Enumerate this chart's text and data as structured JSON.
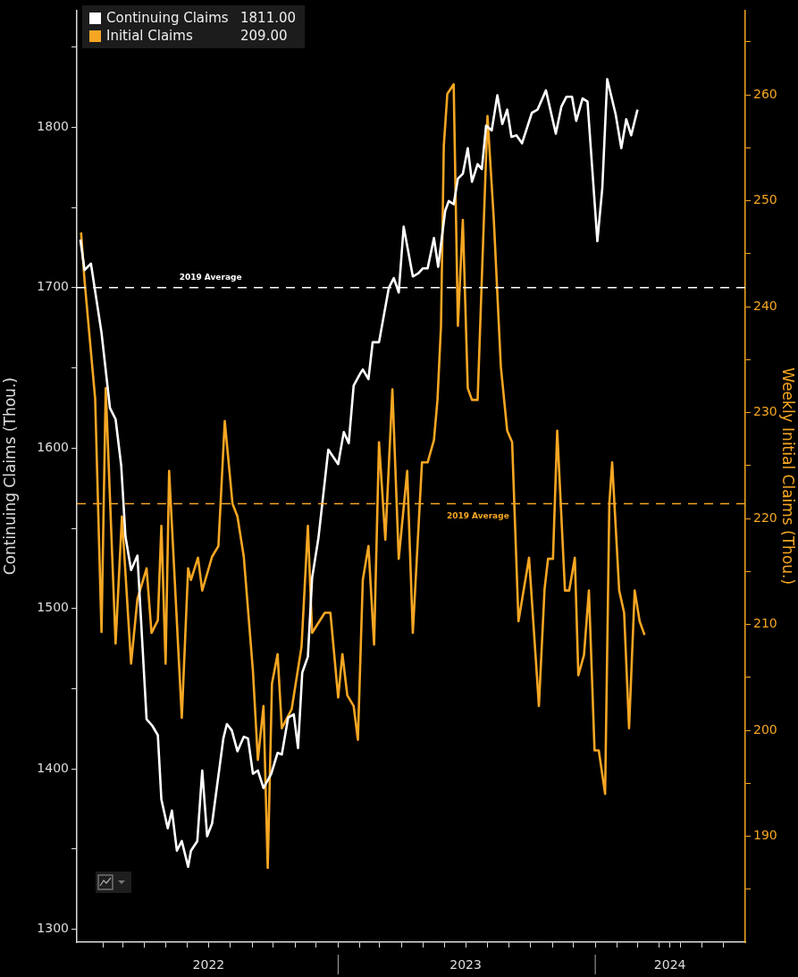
{
  "chart_data": {
    "type": "line",
    "ylabel": "Continuing Claims (Thou.)",
    "y2label": "Weekly Initial Claims (Thou.)",
    "xlim": [
      "2021-12-26",
      "2024-08-01"
    ],
    "xticks": [
      {
        "value": "2022-02-01",
        "label": null
      },
      {
        "value": "2022-03-01",
        "label": null
      },
      {
        "value": "2022-04-01",
        "label": null
      },
      {
        "value": "2022-05-01",
        "label": null
      },
      {
        "value": "2022-06-01",
        "label": null
      },
      {
        "value": "2022-07-01",
        "label": "2022"
      },
      {
        "value": "2022-08-01",
        "label": null
      },
      {
        "value": "2022-09-01",
        "label": null
      },
      {
        "value": "2022-10-01",
        "label": null
      },
      {
        "value": "2022-11-01",
        "label": null
      },
      {
        "value": "2022-12-01",
        "label": null
      },
      {
        "value": "2023-01-01",
        "label": null
      },
      {
        "value": "2023-02-01",
        "label": null
      },
      {
        "value": "2023-03-01",
        "label": null
      },
      {
        "value": "2023-04-01",
        "label": null
      },
      {
        "value": "2023-05-01",
        "label": null
      },
      {
        "value": "2023-06-01",
        "label": null
      },
      {
        "value": "2023-07-01",
        "label": "2023"
      },
      {
        "value": "2023-08-01",
        "label": null
      },
      {
        "value": "2023-09-01",
        "label": null
      },
      {
        "value": "2023-10-01",
        "label": null
      },
      {
        "value": "2023-11-01",
        "label": null
      },
      {
        "value": "2023-12-01",
        "label": null
      },
      {
        "value": "2024-01-01",
        "label": null
      },
      {
        "value": "2024-02-01",
        "label": null
      },
      {
        "value": "2024-03-01",
        "label": null
      },
      {
        "value": "2024-04-01",
        "label": null
      },
      {
        "value": "2024-04-16",
        "label": "2024"
      },
      {
        "value": "2024-05-01",
        "label": null
      },
      {
        "value": "2024-06-01",
        "label": null
      },
      {
        "value": "2024-07-01",
        "label": null
      }
    ],
    "ylim": [
      1292,
      1873
    ],
    "yticks": [
      1300,
      {
        "value": 1350,
        "label": null
      },
      1400,
      {
        "value": 1450,
        "label": null
      },
      1500,
      {
        "value": 1550,
        "label": null
      },
      1600,
      {
        "value": 1650,
        "label": null
      },
      1700,
      {
        "value": 1750,
        "label": null
      },
      1800,
      {
        "value": 1850,
        "label": null
      }
    ],
    "y2lim": [
      180,
      268
    ],
    "y2ticks": [
      {
        "value": 185,
        "label": null
      },
      190,
      {
        "value": 195,
        "label": null
      },
      200,
      {
        "value": 205,
        "label": null
      },
      210,
      {
        "value": 215,
        "label": null
      },
      220,
      {
        "value": 225,
        "label": null
      },
      230,
      {
        "value": 235,
        "label": null
      },
      240,
      {
        "value": 245,
        "label": null
      },
      250,
      {
        "value": 255,
        "label": null
      },
      260,
      {
        "value": 265,
        "label": null
      }
    ],
    "annotations": [
      "1811.00",
      "209.00"
    ],
    "grid": false,
    "legend": "top left",
    "marker": "none",
    "line_style": "solid",
    "ref_lines": [
      {
        "axis": "y",
        "value": 1700,
        "label": "2019 Average",
        "color": "#ffffff",
        "line_style": "dashed"
      },
      {
        "axis": "y2",
        "value": 221.4,
        "label": "2019 Average",
        "color": "#f5a623",
        "line_style": "dashed"
      }
    ],
    "series": [
      {
        "name": "Continuing Claims",
        "color": "#ffffff",
        "x": [
          "2021-12-31",
          "2022-01-06",
          "2022-01-15",
          "2022-01-30",
          "2022-02-11",
          "2022-02-19",
          "2022-02-27",
          "2022-03-05",
          "2022-03-13",
          "2022-03-22",
          "2022-04-04",
          "2022-04-12",
          "2022-04-20",
          "2022-04-25",
          "2022-05-04",
          "2022-05-10",
          "2022-05-17",
          "2022-05-24",
          "2022-06-02",
          "2022-06-06",
          "2022-06-15",
          "2022-06-22",
          "2022-06-29",
          "2022-07-06",
          "2022-07-22",
          "2022-07-27",
          "2022-08-03",
          "2022-08-11",
          "2022-08-20",
          "2022-08-26",
          "2022-09-02",
          "2022-09-09",
          "2022-09-17",
          "2022-09-28",
          "2022-10-07",
          "2022-10-13",
          "2022-10-22",
          "2022-10-30",
          "2022-11-05",
          "2022-11-11",
          "2022-11-19",
          "2022-11-25",
          "2022-12-04",
          "2022-12-18",
          "2023-01-01",
          "2023-01-09",
          "2023-01-16",
          "2023-01-23",
          "2023-02-02",
          "2023-02-05",
          "2023-02-13",
          "2023-02-19",
          "2023-02-28",
          "2023-03-14",
          "2023-03-21",
          "2023-03-28",
          "2023-04-04",
          "2023-04-17",
          "2023-04-25",
          "2023-05-01",
          "2023-05-08",
          "2023-05-17",
          "2023-05-23",
          "2023-06-02",
          "2023-06-07",
          "2023-06-14",
          "2023-06-20",
          "2023-06-27",
          "2023-07-04",
          "2023-07-10",
          "2023-07-18",
          "2023-07-24",
          "2023-07-30",
          "2023-08-07",
          "2023-08-15",
          "2023-08-22",
          "2023-08-29",
          "2023-09-04",
          "2023-09-11",
          "2023-09-19",
          "2023-10-03",
          "2023-10-11",
          "2023-10-23",
          "2023-11-06",
          "2023-11-14",
          "2023-11-21",
          "2023-11-29",
          "2023-12-05",
          "2023-12-14",
          "2023-12-21",
          "2024-01-04",
          "2024-01-11",
          "2024-01-18",
          "2024-01-30",
          "2024-02-07",
          "2024-02-14",
          "2024-02-21",
          "2024-03-01"
        ],
        "values": [
          1730,
          1711,
          1715,
          1672,
          1625,
          1618,
          1589,
          1545,
          1524,
          1533,
          1431,
          1427,
          1421,
          1381,
          1363,
          1374,
          1349,
          1355,
          1339,
          1349,
          1355,
          1399,
          1358,
          1366,
          1419,
          1428,
          1424,
          1411,
          1420,
          1419,
          1397,
          1399,
          1388,
          1397,
          1410,
          1409,
          1432,
          1434,
          1413,
          1460,
          1470,
          1519,
          1544,
          1599,
          1590,
          1610,
          1603,
          1639,
          1647,
          1649,
          1643,
          1666,
          1666,
          1700,
          1706,
          1697,
          1738,
          1707,
          1709,
          1712,
          1712,
          1731,
          1713,
          1748,
          1754,
          1752,
          1768,
          1771,
          1787,
          1766,
          1777,
          1774,
          1801,
          1798,
          1820,
          1802,
          1811,
          1794,
          1795,
          1790,
          1809,
          1811,
          1823,
          1796,
          1813,
          1819,
          1819,
          1804,
          1818,
          1816,
          1729,
          1762,
          1830,
          1808,
          1787,
          1805,
          1795,
          1811
        ]
      },
      {
        "name": "Initial Claims",
        "color": "#f5a623",
        "axis": "y2",
        "x": [
          "2022-01-01",
          "2022-01-06",
          "2022-01-21",
          "2022-01-30",
          "2022-02-05",
          "2022-02-19",
          "2022-02-28",
          "2022-03-13",
          "2022-03-22",
          "2022-04-04",
          "2022-04-11",
          "2022-04-20",
          "2022-04-25",
          "2022-05-01",
          "2022-05-06",
          "2022-05-24",
          "2022-06-02",
          "2022-06-06",
          "2022-06-16",
          "2022-06-22",
          "2022-07-06",
          "2022-07-15",
          "2022-07-24",
          "2022-08-04",
          "2022-08-11",
          "2022-08-20",
          "2022-09-02",
          "2022-09-09",
          "2022-09-17",
          "2022-09-23",
          "2022-09-29",
          "2022-10-07",
          "2022-10-13",
          "2022-10-27",
          "2022-11-10",
          "2022-11-19",
          "2022-11-25",
          "2022-12-13",
          "2022-12-21",
          "2023-01-01",
          "2023-01-07",
          "2023-01-14",
          "2023-01-23",
          "2023-01-29",
          "2023-02-05",
          "2023-02-13",
          "2023-02-21",
          "2023-02-28",
          "2023-03-09",
          "2023-03-19",
          "2023-03-28",
          "2023-04-09",
          "2023-04-17",
          "2023-04-30",
          "2023-05-08",
          "2023-05-17",
          "2023-05-22",
          "2023-05-27",
          "2023-05-31",
          "2023-06-05",
          "2023-06-14",
          "2023-06-20",
          "2023-06-27",
          "2023-07-04",
          "2023-07-10",
          "2023-07-18",
          "2023-08-01",
          "2023-08-10",
          "2023-08-20",
          "2023-08-29",
          "2023-09-05",
          "2023-09-14",
          "2023-09-29",
          "2023-10-13",
          "2023-10-21",
          "2023-10-26",
          "2023-11-02",
          "2023-11-08",
          "2023-11-19",
          "2023-11-25",
          "2023-12-03",
          "2023-12-08",
          "2023-12-16",
          "2023-12-23",
          "2023-12-31",
          "2024-01-06",
          "2024-01-15",
          "2024-01-21",
          "2024-01-25",
          "2024-02-04",
          "2024-02-11",
          "2024-02-18",
          "2024-02-26",
          "2024-03-04",
          "2024-03-11"
        ],
        "values": [
          247.0,
          242.4,
          231.3,
          209.3,
          232.3,
          208.2,
          220.2,
          206.3,
          212.4,
          215.3,
          209.2,
          210.4,
          219.3,
          206.3,
          224.5,
          201.2,
          215.3,
          214.2,
          216.3,
          213.2,
          216.4,
          217.4,
          229.2,
          221.4,
          220.2,
          216.4,
          205.6,
          197.2,
          202.3,
          187.0,
          204.4,
          207.2,
          200.2,
          202.0,
          207.9,
          219.3,
          209.2,
          211.1,
          211.1,
          203.1,
          207.2,
          203.3,
          202.3,
          199.1,
          214.2,
          217.4,
          208.1,
          227.2,
          218.0,
          232.2,
          216.2,
          224.5,
          209.2,
          225.3,
          225.3,
          227.4,
          231.2,
          238.2,
          255.2,
          260.1,
          261.0,
          238.2,
          248.2,
          232.3,
          231.2,
          231.2,
          258.0,
          248.2,
          234.3,
          228.3,
          227.2,
          210.3,
          216.3,
          202.3,
          213.3,
          216.2,
          216.2,
          228.3,
          213.2,
          213.2,
          216.3,
          205.2,
          207.1,
          213.2,
          198.1,
          198.1,
          194.0,
          221.4,
          225.3,
          213.2,
          211.1,
          200.2,
          213.2,
          210.3,
          209.0
        ]
      }
    ]
  }
}
